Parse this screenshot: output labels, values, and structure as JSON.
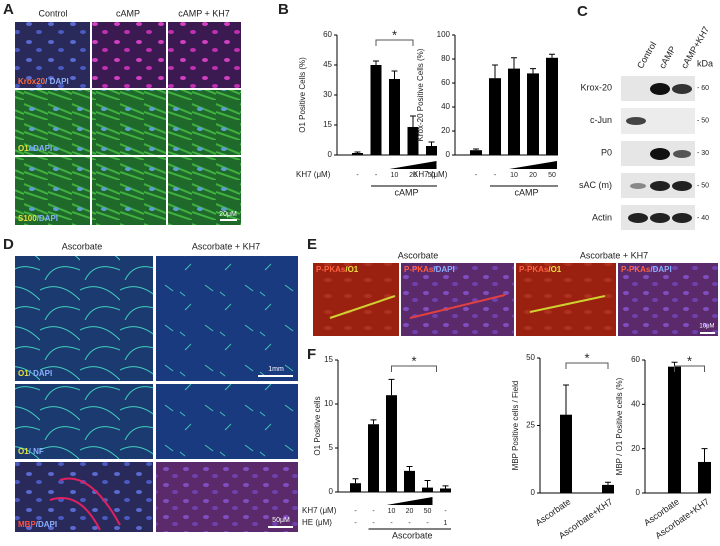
{
  "panels": {
    "A": {
      "letter": "A",
      "columns": [
        "Control",
        "cAMP",
        "cAMP + KH7"
      ],
      "rows": [
        [
          "Krox20",
          "/ DAPI"
        ],
        [
          "O1",
          "/ DAPI"
        ],
        [
          "S100",
          "/DAPI"
        ]
      ],
      "scale": "20μM"
    },
    "B": {
      "letter": "B"
    },
    "C": {
      "letter": "C",
      "lanes": [
        "Control",
        "cAMP",
        "cAMP+KH7"
      ],
      "unit": "kDa",
      "rows": [
        [
          "Krox-20",
          "- 60"
        ],
        [
          "c-Jun",
          "- 50"
        ],
        [
          "P0",
          "- 30"
        ],
        [
          "sAC (m)",
          "- 50"
        ],
        [
          "Actin",
          "- 40"
        ]
      ]
    },
    "D": {
      "letter": "D",
      "columns": [
        "Ascorbate",
        "Ascorbate + KH7"
      ],
      "rows": [
        [
          "O1",
          "/ DAPI"
        ],
        [
          "O1",
          "/ NF"
        ],
        [
          "MBP",
          "/DAPI"
        ]
      ],
      "scale_top": "1mm",
      "scale_bottom": "50μM"
    },
    "E": {
      "letter": "E",
      "columns": [
        "Ascorbate",
        "Ascorbate + KH7"
      ],
      "panel_labels": [
        [
          "P-PKAs",
          "/O1"
        ],
        [
          "P-PKAs",
          "/DAPI"
        ],
        [
          "P-PKAs",
          "/O1"
        ],
        [
          "P-PKAs",
          "/DAPI"
        ]
      ],
      "scale": "10μM"
    },
    "F": {
      "letter": "F"
    }
  },
  "chart_data": [
    {
      "type": "bar",
      "y_label": "O1 Positive Cells (%)",
      "color": "#000000",
      "categories": [
        "-",
        "-",
        "10",
        "20",
        "50"
      ],
      "category_title": "KH7 (μM)",
      "values": [
        1,
        45,
        38,
        14,
        4.5
      ],
      "errors": [
        0.5,
        2,
        4,
        5.5,
        2
      ],
      "group_label": "cAMP",
      "annotation": "*",
      "ylim": [
        0,
        60
      ],
      "yticks": [
        0,
        15,
        30,
        45,
        60
      ]
    },
    {
      "type": "bar",
      "y_label": "Krox-20 Positive Cells (%)",
      "color": "#000000",
      "categories": [
        "-",
        "-",
        "10",
        "20",
        "50"
      ],
      "category_title": "KH7 (μM)",
      "values": [
        4,
        64,
        72,
        68,
        81
      ],
      "errors": [
        1,
        11,
        9,
        4,
        3
      ],
      "group_label": "cAMP",
      "ylim": [
        0,
        100
      ],
      "yticks": [
        0,
        20,
        40,
        60,
        80,
        100
      ]
    },
    {
      "type": "bar",
      "y_label": "O1 Positive cells",
      "color": "#000000",
      "categories": [
        "-",
        "-",
        "10",
        "20",
        "50",
        "-"
      ],
      "category_title": "KH7 (μM)",
      "category_rows": [
        {
          "label": "HE (μM)",
          "values": [
            "-",
            "-",
            "-",
            "-",
            "-",
            "1"
          ]
        }
      ],
      "values": [
        1,
        7.7,
        11,
        2.4,
        0.5,
        0.4
      ],
      "errors": [
        0.5,
        0.5,
        1.8,
        0.5,
        0.8,
        0.3
      ],
      "group_label": "Ascorbate",
      "annotation": "*",
      "ylim": [
        0,
        15
      ],
      "yticks": [
        0,
        5,
        10,
        15
      ]
    },
    {
      "type": "bar",
      "y_label": "MBP Positive cells / Field",
      "color": "#000000",
      "categories": [
        "Ascorbate",
        "Ascorbate+KH7"
      ],
      "values": [
        29,
        3
      ],
      "errors": [
        11,
        1
      ],
      "annotation": "*",
      "ylim": [
        0,
        50
      ],
      "yticks": [
        0,
        25,
        50
      ]
    },
    {
      "type": "bar",
      "y_label": "MBP / O1 Positive cells (%)",
      "color": "#000000",
      "categories": [
        "Ascorbate",
        "Ascorbate+KH7"
      ],
      "values": [
        57,
        14
      ],
      "errors": [
        2,
        6
      ],
      "annotation": "*",
      "ylim": [
        0,
        60
      ],
      "yticks": [
        0,
        20,
        40,
        60
      ]
    }
  ]
}
